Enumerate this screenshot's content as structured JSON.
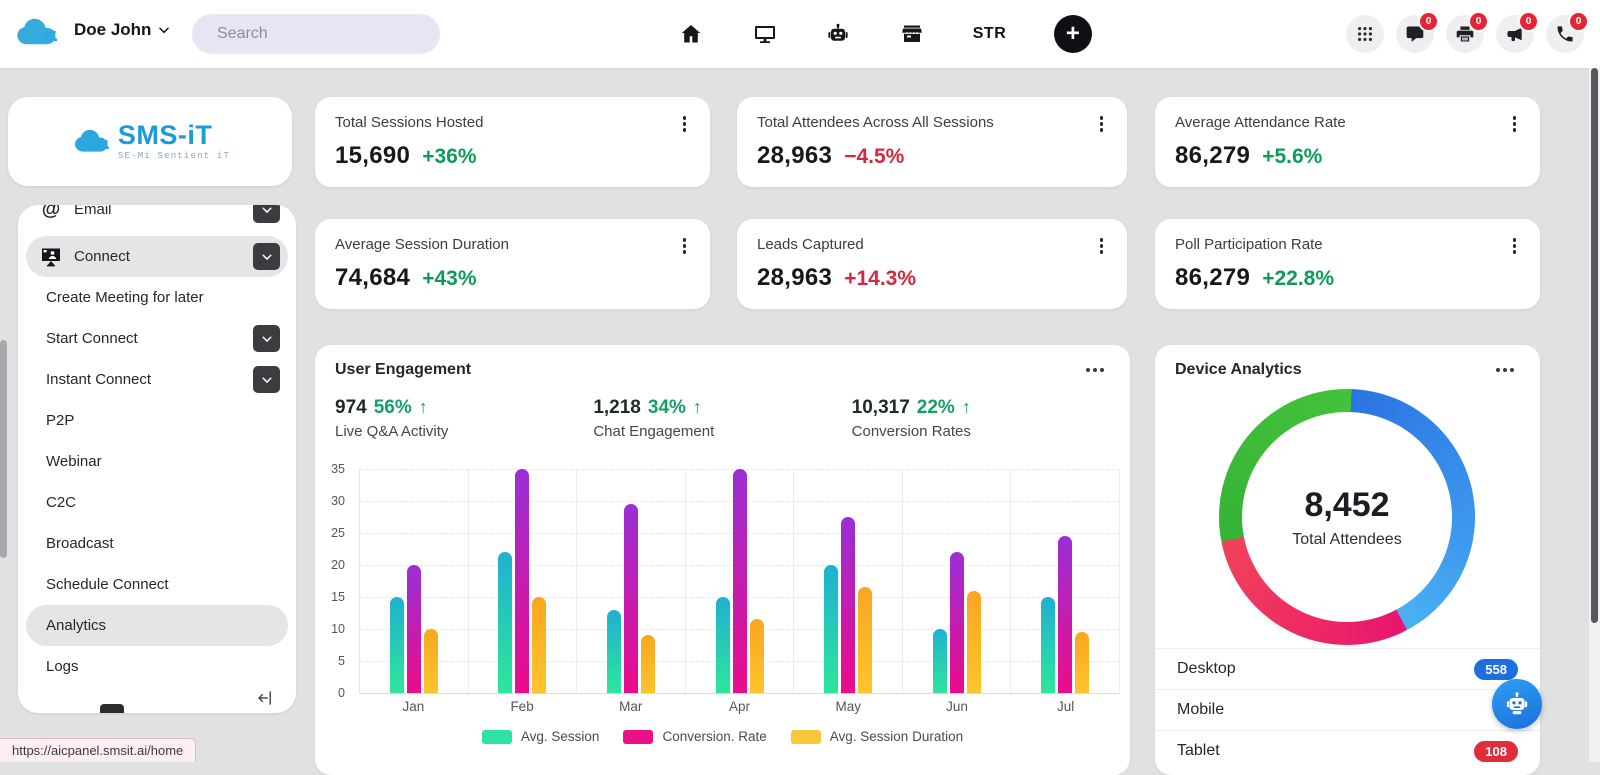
{
  "navbar": {
    "user_name": "Doe John",
    "search_placeholder": "Search",
    "center_icons": [
      "home",
      "monitor",
      "robot",
      "store"
    ],
    "str_label": "STR",
    "plus_label": "+",
    "right_icons": [
      {
        "icon": "apps-grid",
        "badge": null
      },
      {
        "icon": "chat",
        "badge": "0"
      },
      {
        "icon": "printer",
        "badge": "0"
      },
      {
        "icon": "megaphone",
        "badge": "0"
      },
      {
        "icon": "phone",
        "badge": "0"
      }
    ],
    "badge_color": "#e42536"
  },
  "sidebar": {
    "logo_title": "SMS-iT",
    "logo_subtitle": "SE-Mi Sentient iT",
    "items": [
      {
        "label": "Email",
        "icon": "at",
        "chevron": true,
        "clipped": true
      },
      {
        "label": "Connect",
        "icon": "connect",
        "chevron": true,
        "selected": true
      },
      {
        "label": "Create Meeting for later"
      },
      {
        "label": "Start Connect",
        "chevron": true
      },
      {
        "label": "Instant Connect",
        "chevron": true
      },
      {
        "label": "P2P"
      },
      {
        "label": "Webinar"
      },
      {
        "label": "C2C"
      },
      {
        "label": "Broadcast"
      },
      {
        "label": "Schedule Connect"
      },
      {
        "label": "Analytics",
        "selected": true
      },
      {
        "label": "Logs"
      }
    ]
  },
  "stat_cards": [
    {
      "title": "Total Sessions Hosted",
      "value": "15,690",
      "delta": "+36%",
      "delta_color": "#0e9b57"
    },
    {
      "title": "Total Attendees Across All Sessions",
      "value": "28,963",
      "delta": "−4.5%",
      "delta_color": "#d7263d"
    },
    {
      "title": "Average Attendance Rate",
      "value": "86,279",
      "delta": "+5.6%",
      "delta_color": "#0e9b57"
    },
    {
      "title": "Average Session Duration",
      "value": "74,684",
      "delta": "+43%",
      "delta_color": "#0e9b57"
    },
    {
      "title": "Leads Captured",
      "value": "28,963",
      "delta": "+14.3%",
      "delta_color": "#d7263d"
    },
    {
      "title": "Poll Participation Rate",
      "value": "86,279",
      "delta": "+22.8%",
      "delta_color": "#0e9b57"
    }
  ],
  "engagement": {
    "title": "User Engagement",
    "pct_color": "#12a065",
    "metrics": [
      {
        "value": "974",
        "pct": "56%",
        "label": "Live Q&A Activity"
      },
      {
        "value": "1,218",
        "pct": "34%",
        "label": "Chat Engagement"
      },
      {
        "value": "10,317",
        "pct": "22%",
        "label": "Conversion Rates"
      }
    ]
  },
  "chart_data": {
    "type": "bar",
    "title": "User Engagement",
    "categories": [
      "Jan",
      "Feb",
      "Mar",
      "Apr",
      "May",
      "Jun",
      "Jul"
    ],
    "series": [
      {
        "name": "Avg. Session",
        "color_top": "#1fb0d2",
        "color_bottom": "#2ee69a",
        "legend_color": "#2fe3a0",
        "values": [
          15,
          22,
          13,
          15,
          20,
          10,
          15
        ]
      },
      {
        "name": "Conversion. Rate",
        "color_top": "#9a2fd6",
        "color_bottom": "#ec0b8a",
        "legend_color": "#ec1087",
        "values": [
          20,
          35,
          29.5,
          35,
          27.5,
          22,
          24.5
        ]
      },
      {
        "name": "Avg. Session Duration",
        "color_top": "#f9a61f",
        "color_bottom": "#fcc52e",
        "legend_color": "#f8c83a",
        "values": [
          10,
          15,
          9,
          11.5,
          16.5,
          16,
          9.5
        ]
      }
    ],
    "ylim": [
      0,
      35
    ],
    "yticks": [
      0,
      5,
      10,
      15,
      20,
      25,
      30,
      35
    ],
    "grid": true,
    "legend_position": "bottom"
  },
  "device": {
    "title": "Device Analytics",
    "center_value": "8,452",
    "center_label": "Total Attendees",
    "donut_stops": [
      [
        "#2b74e3",
        "0deg"
      ],
      [
        "#3f9bef",
        "105deg"
      ],
      [
        "#4ab1f2",
        "150deg"
      ],
      [
        "#e8156e",
        "150deg"
      ],
      [
        "#ee2d62",
        "205deg"
      ],
      [
        "#f0435a",
        "257deg"
      ],
      [
        "#35b335",
        "257deg"
      ],
      [
        "#45c23c",
        "360deg"
      ]
    ],
    "rows": [
      {
        "label": "Desktop",
        "badge": "558",
        "badge_color": "#1d6fe0"
      },
      {
        "label": "Mobile",
        "badge": null,
        "badge_color": null
      },
      {
        "label": "Tablet",
        "badge": "108",
        "badge_color": "#e12d39"
      }
    ]
  },
  "statusbar": {
    "url": "https://aicpanel.smsit.ai/home"
  }
}
